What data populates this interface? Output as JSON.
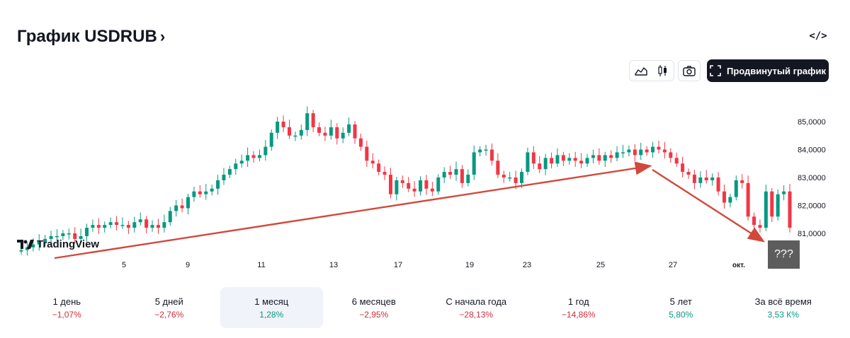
{
  "header": {
    "title": "График USDRUB",
    "chevron": "›",
    "embed_label": "</>"
  },
  "toolbar": {
    "advanced_label": "Продвинутый график",
    "line_icon": "area-chart-icon",
    "candle_icon": "candles-icon",
    "camera_icon": "camera-icon"
  },
  "watermark": {
    "text": "TradingView"
  },
  "overlay": {
    "question": "???"
  },
  "colors": {
    "up": "#089981",
    "down": "#f23645",
    "arrow": "#d1493c",
    "axis_text": "#131722"
  },
  "chart_data": {
    "type": "candlestick",
    "title": "",
    "xlabel": "",
    "ylabel": "",
    "x_ticks": [
      "5",
      "9",
      "11",
      "13",
      "17",
      "19",
      "23",
      "25",
      "27",
      "окт."
    ],
    "y_ticks": [
      "85,0000",
      "84,0000",
      "83,0000",
      "82,0000",
      "81,0000"
    ],
    "ylim": [
      80.15,
      86.0
    ],
    "grid": false,
    "series": [
      {
        "values": [
          80.4,
          80.5,
          80.6,
          80.7,
          80.8,
          80.9,
          80.9,
          81.0,
          81.0,
          80.8,
          80.9,
          81.2,
          81.3,
          81.2,
          81.3,
          81.4,
          81.3,
          81.3,
          81.2,
          81.4,
          81.5,
          81.2,
          81.3,
          81.2,
          81.4,
          81.8,
          82.0,
          81.9,
          82.3,
          82.5,
          82.4,
          82.5,
          82.6,
          82.9,
          83.1,
          83.3,
          83.5,
          83.6,
          83.8,
          83.7,
          83.8,
          84.1,
          84.6,
          85.0,
          84.8,
          84.5,
          84.5,
          84.7,
          85.3,
          84.8,
          84.6,
          84.5,
          84.8,
          84.4,
          84.6,
          84.9,
          84.4,
          84.1,
          83.6,
          83.5,
          83.2,
          83.1,
          82.4,
          82.9,
          82.8,
          82.6,
          82.5,
          82.9,
          82.6,
          82.5,
          83.0,
          83.2,
          83.1,
          83.3,
          82.8,
          83.1,
          83.9,
          84.0,
          84.0,
          83.6,
          83.1,
          83.0,
          83.0,
          82.8,
          83.2,
          83.9,
          83.5,
          83.3,
          83.7,
          83.5,
          83.8,
          83.6,
          83.7,
          83.6,
          83.5,
          83.7,
          83.8,
          83.6,
          83.8,
          83.7,
          83.9,
          83.9,
          84.0,
          83.8,
          84.0,
          83.9,
          84.1,
          84.0,
          83.9,
          83.7,
          83.5,
          83.2,
          83.1,
          82.8,
          83.0,
          82.9,
          83.0,
          82.5,
          82.1,
          82.3,
          82.9,
          82.8,
          81.6,
          81.3,
          81.2,
          82.5,
          81.6,
          82.4,
          82.5,
          81.2
        ]
      }
    ]
  },
  "periods": [
    {
      "label": "1 день",
      "value": "−1,07%",
      "dir": "neg"
    },
    {
      "label": "5 дней",
      "value": "−2,76%",
      "dir": "neg"
    },
    {
      "label": "1 месяц",
      "value": "1,28%",
      "dir": "pos"
    },
    {
      "label": "6 месяцев",
      "value": "−2,95%",
      "dir": "neg"
    },
    {
      "label": "С начала года",
      "value": "−28,13%",
      "dir": "neg"
    },
    {
      "label": "1 год",
      "value": "−14,86%",
      "dir": "neg"
    },
    {
      "label": "5 лет",
      "value": "5,80%",
      "dir": "pos"
    },
    {
      "label": "За всё время",
      "value": "3,53 К%",
      "dir": "pos"
    }
  ]
}
